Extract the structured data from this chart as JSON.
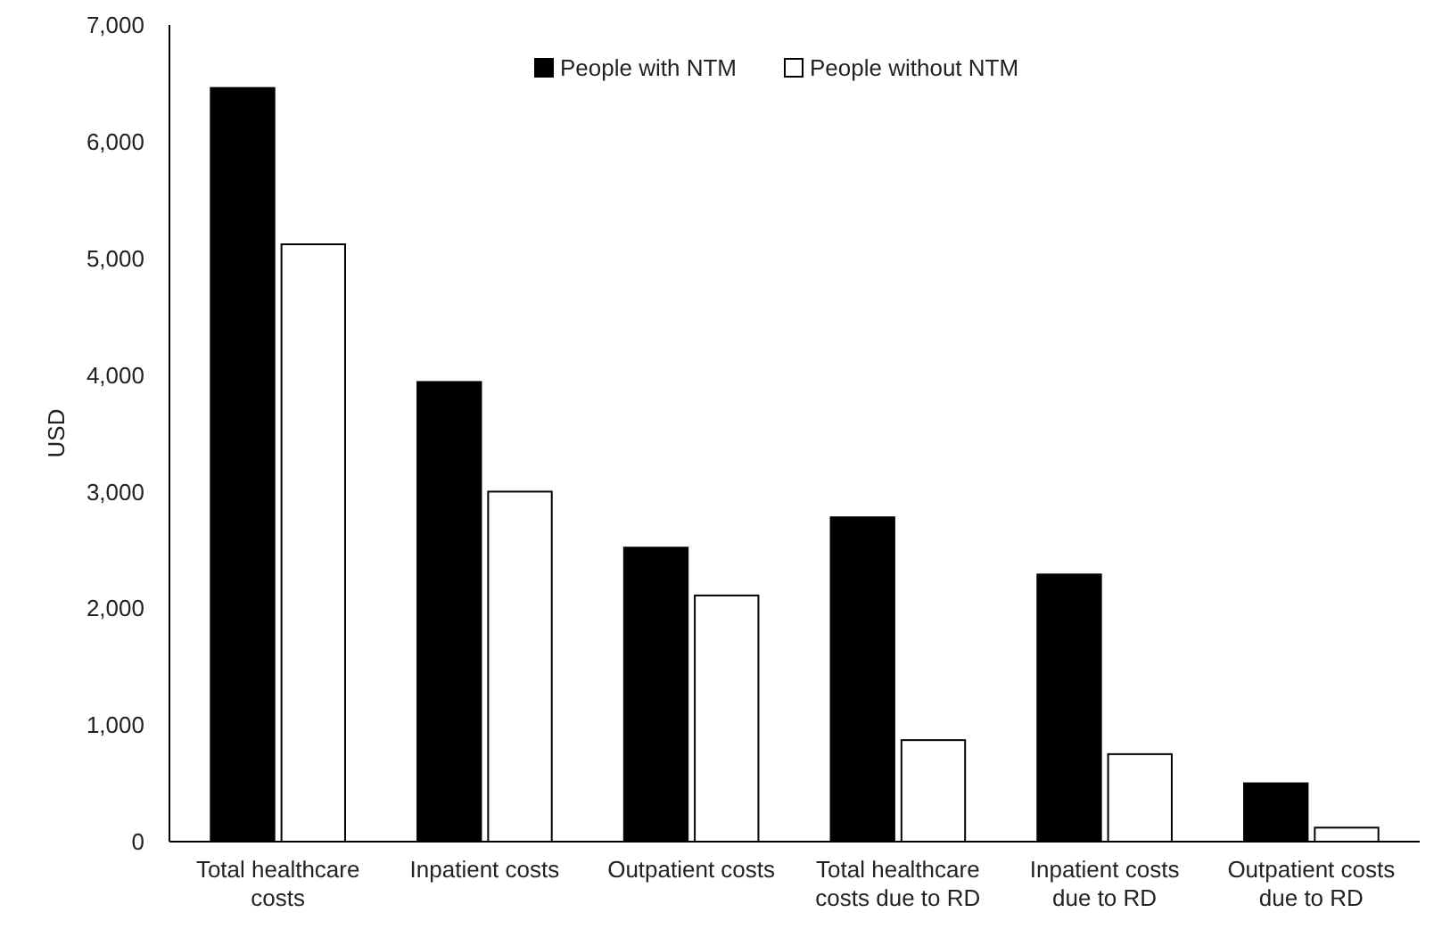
{
  "chart_data": {
    "type": "bar",
    "ylabel": "USD",
    "categories": [
      "Total healthcare costs",
      "Inpatient costs",
      "Outpatient costs",
      "Total healthcare costs due to RD",
      "Inpatient costs due to RD",
      "Outpatient costs due to RD"
    ],
    "series": [
      {
        "name": "People with NTM",
        "color": "#000000",
        "values": [
          6460,
          3940,
          2520,
          2780,
          2290,
          500
        ]
      },
      {
        "name": "People without NTM",
        "color": "#ffffff",
        "values": [
          5120,
          3000,
          2110,
          870,
          750,
          120
        ]
      }
    ],
    "ylim": [
      0,
      7000
    ],
    "yticks": [
      {
        "value": 0,
        "label": "0"
      },
      {
        "value": 1000,
        "label": "1,000"
      },
      {
        "value": 2000,
        "label": "2,000"
      },
      {
        "value": 3000,
        "label": "3,000"
      },
      {
        "value": 4000,
        "label": "4,000"
      },
      {
        "value": 5000,
        "label": "5,000"
      },
      {
        "value": 6000,
        "label": "6,000"
      },
      {
        "value": 7000,
        "label": "7,000"
      }
    ],
    "grid": false,
    "legend": "top"
  }
}
